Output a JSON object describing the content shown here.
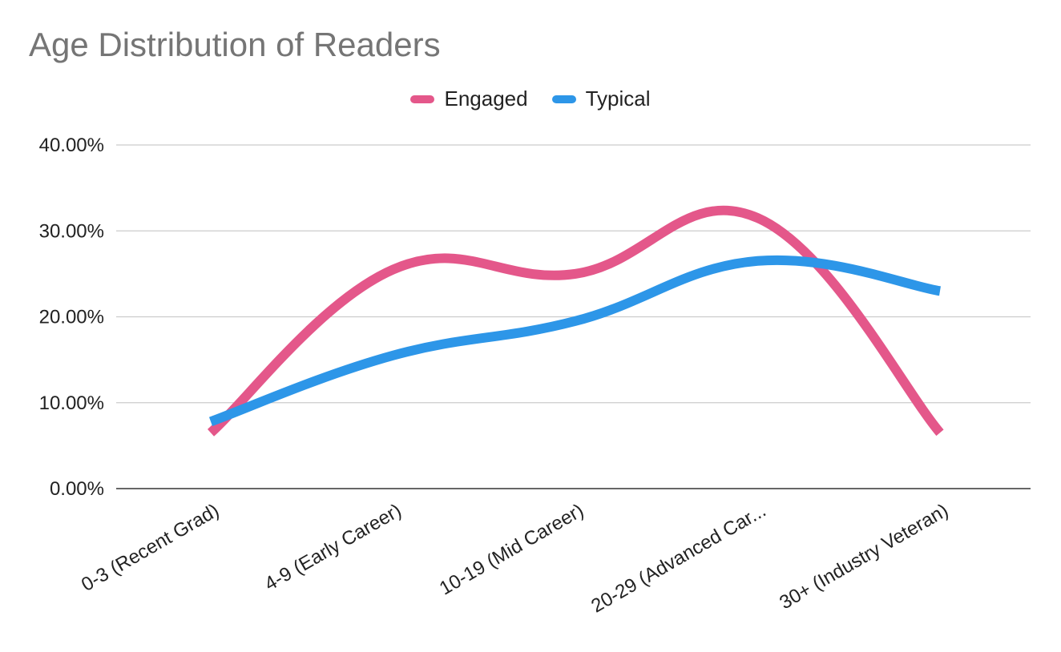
{
  "chart_data": {
    "type": "line",
    "title": "Age Distribution of Readers",
    "xlabel": "",
    "ylabel": "",
    "categories": [
      "0-3 (Recent Grad)",
      "4-9 (Early Career)",
      "10-19 (Mid Career)",
      "20-29 (Advanced Car...",
      "30+ (Industry Veteran)"
    ],
    "series": [
      {
        "name": "Engaged",
        "color": "#e4578a",
        "values": [
          6.5,
          25.5,
          25.0,
          31.5,
          6.5
        ]
      },
      {
        "name": "Typical",
        "color": "#2d96e8",
        "values": [
          7.8,
          15.5,
          19.5,
          26.5,
          23.0
        ]
      }
    ],
    "ylim": [
      0,
      40
    ],
    "yticks": [
      "0.00%",
      "10.00%",
      "20.00%",
      "30.00%",
      "40.00%"
    ],
    "yticks_values": [
      0,
      10,
      20,
      30,
      40
    ],
    "grid": true,
    "legend_position": "top"
  }
}
